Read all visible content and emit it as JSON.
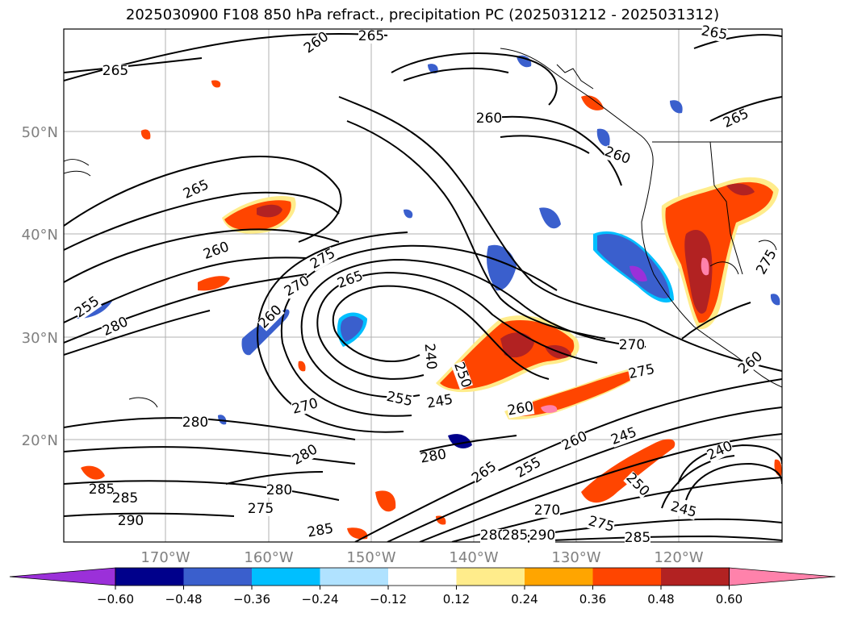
{
  "title": "2025030900 F108 850 hPa refract., precipitation PC (2025031212 - 2025031312)",
  "lat_labels": [
    "50°N",
    "40°N",
    "30°N",
    "20°N"
  ],
  "lon_labels": [
    "170°W",
    "160°W",
    "150°W",
    "140°W",
    "130°W",
    "120°W"
  ],
  "contour_labels": [
    {
      "text": "265"
    },
    {
      "text": "265"
    },
    {
      "text": "260"
    },
    {
      "text": "265"
    },
    {
      "text": "260"
    },
    {
      "text": "265"
    },
    {
      "text": "265"
    },
    {
      "text": "260"
    },
    {
      "text": "260"
    },
    {
      "text": "275"
    },
    {
      "text": "255"
    },
    {
      "text": "270"
    },
    {
      "text": "265"
    },
    {
      "text": "280"
    },
    {
      "text": "260"
    },
    {
      "text": "240"
    },
    {
      "text": "250"
    },
    {
      "text": "270"
    },
    {
      "text": "275"
    },
    {
      "text": "270"
    },
    {
      "text": "255"
    },
    {
      "text": "245"
    },
    {
      "text": "280"
    },
    {
      "text": "260"
    },
    {
      "text": "260"
    },
    {
      "text": "245"
    },
    {
      "text": "280"
    },
    {
      "text": "280"
    },
    {
      "text": "265"
    },
    {
      "text": "255"
    },
    {
      "text": "240"
    },
    {
      "text": "250"
    },
    {
      "text": "285"
    },
    {
      "text": "285"
    },
    {
      "text": "280"
    },
    {
      "text": "275"
    },
    {
      "text": "245"
    },
    {
      "text": "290"
    },
    {
      "text": "270"
    },
    {
      "text": "285"
    },
    {
      "text": "280"
    },
    {
      "text": "285"
    },
    {
      "text": "290"
    },
    {
      "text": "275"
    },
    {
      "text": "285"
    },
    {
      "text": "275"
    },
    {
      "text": "260"
    }
  ],
  "colorbar": {
    "tick_labels": [
      "−0.60",
      "−0.48",
      "−0.36",
      "−0.24",
      "−0.12",
      "0.12",
      "0.24",
      "0.36",
      "0.48",
      "0.60"
    ],
    "colors": [
      "#9b30d9",
      "#00008b",
      "#3a5fcd",
      "#00bfff",
      "#b0e2ff",
      "#ffffff",
      "#ffec8b",
      "#ffa500",
      "#ff4500",
      "#b22222",
      "#ff82ab"
    ]
  },
  "colors": {
    "neg_strong": "#00008b",
    "neg_mid": "#3a5fcd",
    "neg_light": "#00bfff",
    "neg_pale": "#b0e2ff",
    "pos_pale": "#ffec8b",
    "pos_light": "#ffa500",
    "pos_mid": "#ff4500",
    "pos_strong": "#b22222",
    "pos_extreme": "#ff82ab"
  }
}
